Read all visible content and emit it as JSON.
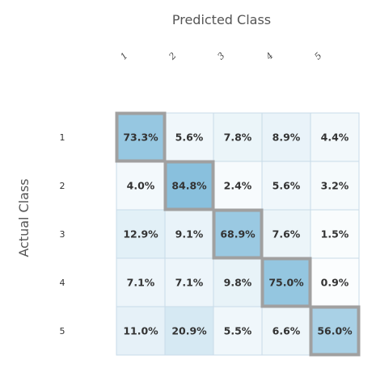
{
  "chart_data": {
    "type": "heatmap",
    "xlabel": "Predicted Class",
    "ylabel": "Actual Class",
    "x_categories": [
      "1",
      "2",
      "3",
      "4",
      "5"
    ],
    "y_categories": [
      "1",
      "2",
      "3",
      "4",
      "5"
    ],
    "values": [
      [
        73.3,
        5.6,
        7.8,
        8.9,
        4.4
      ],
      [
        4.0,
        84.8,
        2.4,
        5.6,
        3.2
      ],
      [
        12.9,
        9.1,
        68.9,
        7.6,
        1.5
      ],
      [
        7.1,
        7.1,
        9.8,
        75.0,
        0.9
      ],
      [
        11.0,
        20.9,
        5.5,
        6.6,
        56.0
      ]
    ],
    "labels": [
      [
        "73.3%",
        "5.6%",
        "7.8%",
        "8.9%",
        "4.4%"
      ],
      [
        "4.0%",
        "84.8%",
        "2.4%",
        "5.6%",
        "3.2%"
      ],
      [
        "12.9%",
        "9.1%",
        "68.9%",
        "7.6%",
        "1.5%"
      ],
      [
        "7.1%",
        "7.1%",
        "9.8%",
        "75.0%",
        "0.9%"
      ],
      [
        "11.0%",
        "20.9%",
        "5.5%",
        "6.6%",
        "56.0%"
      ]
    ],
    "value_range": [
      0,
      100
    ],
    "diagonal_highlight": true,
    "colors": {
      "low": "#ffffff",
      "high": "#7ab8d9",
      "cell_border": "#c8dbe8",
      "highlight_border": "#a0a0a0"
    }
  }
}
